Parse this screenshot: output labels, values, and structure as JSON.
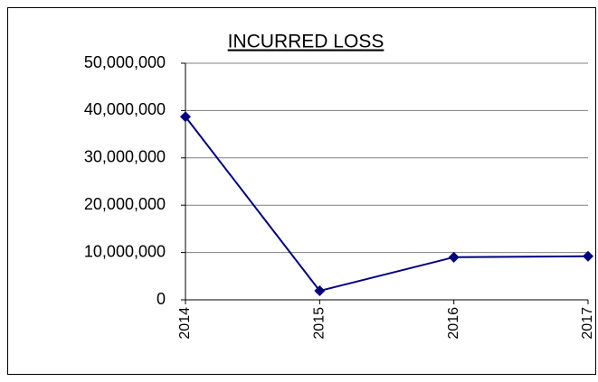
{
  "chart_data": {
    "type": "line",
    "title": "INCURRED LOSS",
    "categories": [
      "2014",
      "2015",
      "2016",
      "2017"
    ],
    "series": [
      {
        "name": "INCURRED LOSS",
        "color": "#000080",
        "values": [
          38700000,
          1900000,
          9000000,
          9200000
        ]
      }
    ],
    "ylim": [
      0,
      50000000
    ],
    "yticks": [
      0,
      {
        "value": 10000000,
        "label": "10,000,000"
      },
      {
        "value": 20000000,
        "label": "20,000,000"
      },
      {
        "value": 30000000,
        "label": "30,000,000"
      },
      {
        "value": 40000000,
        "label": "40,000,000"
      },
      {
        "value": 50000000,
        "label": "50,000,000"
      }
    ],
    "grid": true
  }
}
